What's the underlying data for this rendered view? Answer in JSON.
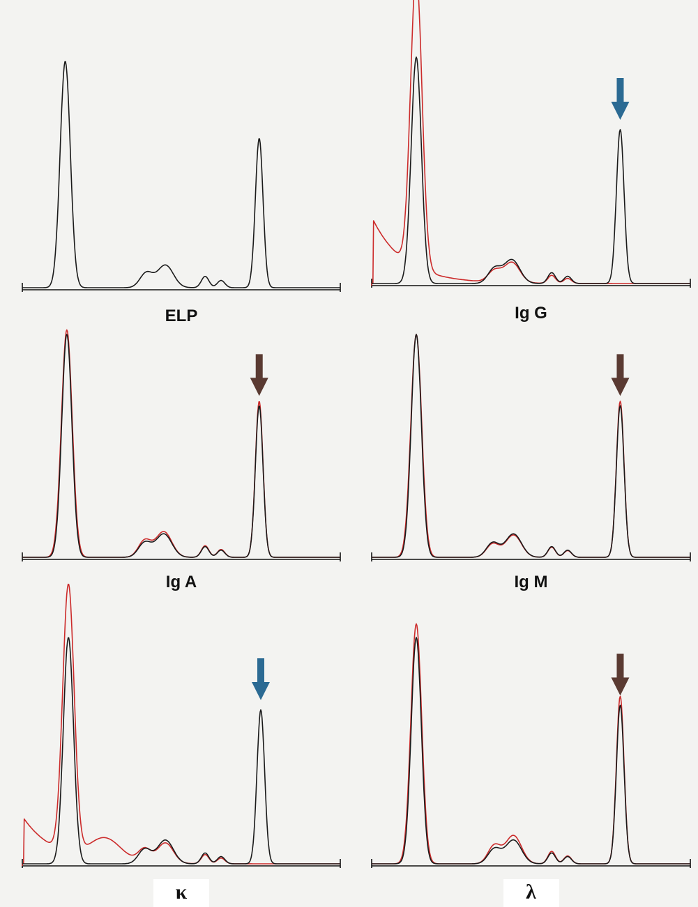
{
  "colors": {
    "background": "#f3f3f1",
    "baseline": "#111111",
    "black_trace": "#1a1a1a",
    "red_trace": "#cc2b2b",
    "blue_arrow": "#2b6a93",
    "brown_arrow": "#5a3a32"
  },
  "chart_data": [
    {
      "type": "line",
      "label": "ELP",
      "series": [
        {
          "color": "black",
          "peaks": [
            {
              "center": 0.135,
              "height": 1.0,
              "width": 0.016
            },
            {
              "center": 0.39,
              "height": 0.065,
              "width": 0.02
            },
            {
              "center": 0.45,
              "height": 0.1,
              "width": 0.025
            },
            {
              "center": 0.575,
              "height": 0.05,
              "width": 0.012
            },
            {
              "center": 0.625,
              "height": 0.032,
              "width": 0.012
            },
            {
              "center": 0.745,
              "height": 0.66,
              "width": 0.012
            }
          ]
        }
      ],
      "arrow": null
    },
    {
      "type": "line",
      "label": "Ig G",
      "series": [
        {
          "color": "black",
          "peaks": [
            {
              "center": 0.14,
              "height": 1.0,
              "width": 0.016
            },
            {
              "center": 0.385,
              "height": 0.065,
              "width": 0.02
            },
            {
              "center": 0.44,
              "height": 0.105,
              "width": 0.025
            },
            {
              "center": 0.565,
              "height": 0.048,
              "width": 0.012
            },
            {
              "center": 0.615,
              "height": 0.032,
              "width": 0.012
            },
            {
              "center": 0.78,
              "height": 0.68,
              "width": 0.012
            }
          ]
        },
        {
          "color": "red",
          "left_plateau": 0.28,
          "peaks": [
            {
              "center": 0.14,
              "height": 1.3,
              "width": 0.018
            },
            {
              "center": 0.385,
              "height": 0.05,
              "width": 0.02
            },
            {
              "center": 0.44,
              "height": 0.09,
              "width": 0.025
            },
            {
              "center": 0.565,
              "height": 0.035,
              "width": 0.012
            },
            {
              "center": 0.615,
              "height": 0.022,
              "width": 0.012
            }
          ]
        }
      ],
      "arrow": {
        "color": "blue",
        "x": 0.78
      }
    },
    {
      "type": "line",
      "label": "Ig A",
      "series": [
        {
          "color": "black",
          "peaks": [
            {
              "center": 0.14,
              "height": 1.0,
              "width": 0.016
            },
            {
              "center": 0.385,
              "height": 0.065,
              "width": 0.02
            },
            {
              "center": 0.445,
              "height": 0.105,
              "width": 0.025
            },
            {
              "center": 0.575,
              "height": 0.048,
              "width": 0.012
            },
            {
              "center": 0.625,
              "height": 0.032,
              "width": 0.012
            },
            {
              "center": 0.745,
              "height": 0.68,
              "width": 0.012
            }
          ]
        },
        {
          "color": "red",
          "peaks": [
            {
              "center": 0.14,
              "height": 1.02,
              "width": 0.017
            },
            {
              "center": 0.385,
              "height": 0.075,
              "width": 0.02
            },
            {
              "center": 0.445,
              "height": 0.115,
              "width": 0.025
            },
            {
              "center": 0.575,
              "height": 0.052,
              "width": 0.012
            },
            {
              "center": 0.625,
              "height": 0.035,
              "width": 0.012
            },
            {
              "center": 0.745,
              "height": 0.7,
              "width": 0.012
            }
          ]
        }
      ],
      "arrow": {
        "color": "brown",
        "x": 0.745
      }
    },
    {
      "type": "line",
      "label": "Ig M",
      "series": [
        {
          "color": "black",
          "peaks": [
            {
              "center": 0.14,
              "height": 1.0,
              "width": 0.016
            },
            {
              "center": 0.38,
              "height": 0.065,
              "width": 0.02
            },
            {
              "center": 0.445,
              "height": 0.105,
              "width": 0.025
            },
            {
              "center": 0.565,
              "height": 0.048,
              "width": 0.012
            },
            {
              "center": 0.615,
              "height": 0.032,
              "width": 0.012
            },
            {
              "center": 0.78,
              "height": 0.68,
              "width": 0.012
            }
          ]
        },
        {
          "color": "red",
          "peaks": [
            {
              "center": 0.14,
              "height": 1.0,
              "width": 0.017
            },
            {
              "center": 0.38,
              "height": 0.06,
              "width": 0.02
            },
            {
              "center": 0.445,
              "height": 0.1,
              "width": 0.025
            },
            {
              "center": 0.565,
              "height": 0.045,
              "width": 0.012
            },
            {
              "center": 0.615,
              "height": 0.03,
              "width": 0.012
            },
            {
              "center": 0.78,
              "height": 0.7,
              "width": 0.012
            }
          ]
        }
      ],
      "arrow": {
        "color": "brown",
        "x": 0.78
      }
    },
    {
      "type": "line",
      "label": "κ",
      "series": [
        {
          "color": "black",
          "peaks": [
            {
              "center": 0.145,
              "height": 1.0,
              "width": 0.016
            },
            {
              "center": 0.385,
              "height": 0.065,
              "width": 0.02
            },
            {
              "center": 0.45,
              "height": 0.105,
              "width": 0.025
            },
            {
              "center": 0.575,
              "height": 0.048,
              "width": 0.012
            },
            {
              "center": 0.625,
              "height": 0.032,
              "width": 0.012
            },
            {
              "center": 0.75,
              "height": 0.68,
              "width": 0.012
            }
          ]
        },
        {
          "color": "red",
          "left_plateau": 0.2,
          "peaks": [
            {
              "center": 0.145,
              "height": 1.18,
              "width": 0.018
            },
            {
              "center": 0.26,
              "height": 0.1,
              "width": 0.05
            },
            {
              "center": 0.385,
              "height": 0.06,
              "width": 0.02
            },
            {
              "center": 0.45,
              "height": 0.09,
              "width": 0.025
            },
            {
              "center": 0.575,
              "height": 0.04,
              "width": 0.012
            },
            {
              "center": 0.625,
              "height": 0.025,
              "width": 0.012
            }
          ]
        }
      ],
      "arrow": {
        "color": "blue",
        "x": 0.75
      }
    },
    {
      "type": "line",
      "label": "λ",
      "series": [
        {
          "color": "black",
          "peaks": [
            {
              "center": 0.14,
              "height": 1.0,
              "width": 0.016
            },
            {
              "center": 0.385,
              "height": 0.065,
              "width": 0.02
            },
            {
              "center": 0.445,
              "height": 0.105,
              "width": 0.025
            },
            {
              "center": 0.565,
              "height": 0.048,
              "width": 0.012
            },
            {
              "center": 0.615,
              "height": 0.032,
              "width": 0.012
            },
            {
              "center": 0.78,
              "height": 0.7,
              "width": 0.012
            }
          ]
        },
        {
          "color": "red",
          "peaks": [
            {
              "center": 0.14,
              "height": 1.06,
              "width": 0.017
            },
            {
              "center": 0.385,
              "height": 0.08,
              "width": 0.02
            },
            {
              "center": 0.445,
              "height": 0.125,
              "width": 0.025
            },
            {
              "center": 0.565,
              "height": 0.055,
              "width": 0.012
            },
            {
              "center": 0.615,
              "height": 0.035,
              "width": 0.012
            },
            {
              "center": 0.78,
              "height": 0.74,
              "width": 0.012
            }
          ]
        }
      ],
      "arrow": {
        "color": "brown",
        "x": 0.78
      }
    }
  ]
}
